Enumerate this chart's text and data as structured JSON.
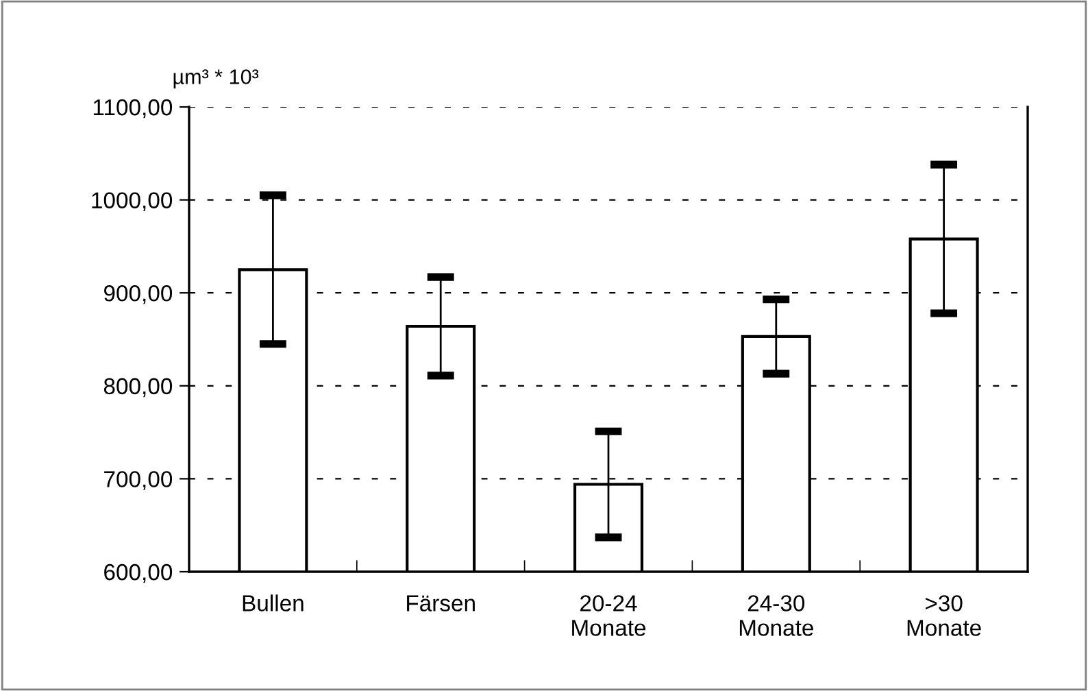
{
  "chart_data": {
    "type": "bar",
    "ylabel": "µm³ * 10³",
    "categories": [
      "Bullen",
      "Färsen",
      "20-24\nMonate",
      "24-30\nMonate",
      ">30\nMonate"
    ],
    "values": [
      925,
      864,
      694,
      853,
      958
    ],
    "errors": [
      80,
      53,
      57,
      40,
      80
    ],
    "color": "#ffffff",
    "ylim": [
      600,
      1100
    ],
    "yticks": [
      {
        "value": 600,
        "label": "600,00"
      },
      {
        "value": 700,
        "label": "700,00"
      },
      {
        "value": 800,
        "label": "800,00"
      },
      {
        "value": 900,
        "label": "900,00"
      },
      {
        "value": 1000,
        "label": "1000,00"
      },
      {
        "value": 1100,
        "label": "1100,00"
      }
    ],
    "grid": "y"
  }
}
